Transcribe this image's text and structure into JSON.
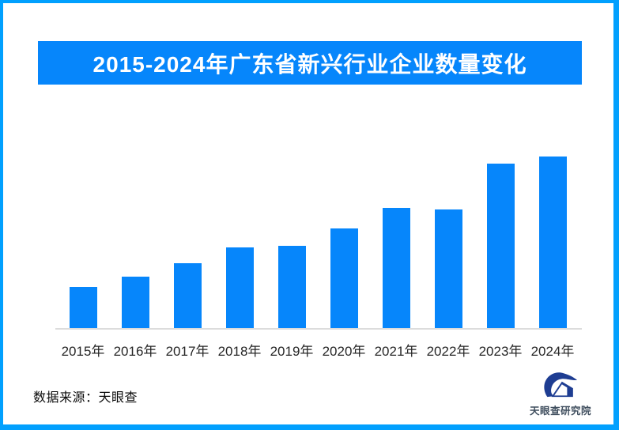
{
  "header": {
    "title": "2015-2024年广东省新兴行业企业数量变化",
    "banner_color": "#0686FB",
    "title_color": "#FFFFFF"
  },
  "chart_data": {
    "type": "bar",
    "title": "2015-2024年广东省新兴行业企业数量变化",
    "categories": [
      "2015年",
      "2016年",
      "2017年",
      "2018年",
      "2019年",
      "2020年",
      "2021年",
      "2022年",
      "2023年",
      "2024年"
    ],
    "values": [
      24,
      30,
      38,
      47,
      48,
      58,
      70,
      69,
      96,
      100
    ],
    "values_note": "relative bar heights as % of tallest bar; no numeric y-axis, gridlines, or data labels are shown in the image",
    "xlabel": "",
    "ylabel": "",
    "ylim": [
      0,
      100
    ],
    "grid": false,
    "legend": false,
    "bar_color": "#0686FB",
    "axis_line_color": "#DCDCDC",
    "tick_label_color": "#262626"
  },
  "footer": {
    "source": "数据来源：天眼查",
    "brand": "天眼查研究院",
    "brand_icon": "tianyancha-eye-logo",
    "brand_navy": "#1E3D92",
    "brand_text_color": "#3F4E5E"
  },
  "frame": {
    "border_color": "#01A0FE",
    "background": "#FFFFFF"
  }
}
